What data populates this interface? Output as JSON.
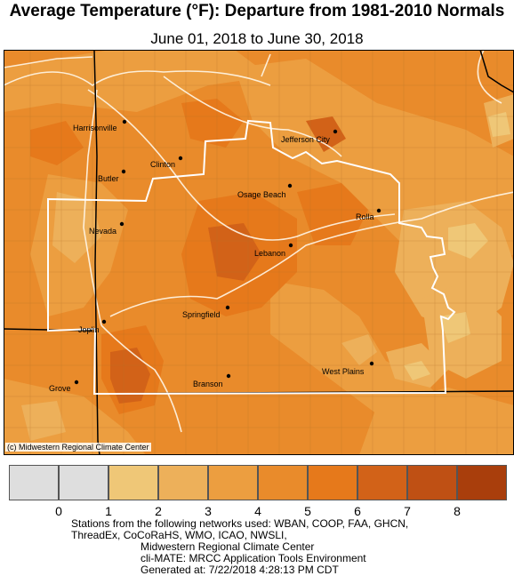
{
  "title": "Average Temperature (°F): Departure from 1981-2010 Normals",
  "date_range": "June 01, 2018 to June 30, 2018",
  "copyright": "(c) Midwestern Regional Climate Center",
  "cities": [
    {
      "name": "Harrisonville"
    },
    {
      "name": "Jefferson City"
    },
    {
      "name": "Clinton"
    },
    {
      "name": "Butler"
    },
    {
      "name": "Osage Beach"
    },
    {
      "name": "Rolla"
    },
    {
      "name": "Nevada"
    },
    {
      "name": "Lebanon"
    },
    {
      "name": "Springfield"
    },
    {
      "name": "Joplin"
    },
    {
      "name": "West Plains"
    },
    {
      "name": "Branson"
    },
    {
      "name": "Grove"
    }
  ],
  "legend": {
    "ticks": [
      "0",
      "1",
      "2",
      "3",
      "4",
      "5",
      "6",
      "7",
      "8"
    ],
    "bins": [
      {
        "range": "<0",
        "color": "#dedede"
      },
      {
        "range": "0-1",
        "color": "#dedede"
      },
      {
        "range": "1-2",
        "color": "#efc777"
      },
      {
        "range": "2-3",
        "color": "#edb05a"
      },
      {
        "range": "3-4",
        "color": "#ec9e40"
      },
      {
        "range": "4-5",
        "color": "#e98b2b"
      },
      {
        "range": "5-6",
        "color": "#e6791b"
      },
      {
        "range": "6-7",
        "color": "#d26218"
      },
      {
        "range": "7-8",
        "color": "#bf5014"
      },
      {
        "range": ">8",
        "color": "#a93e0c"
      }
    ]
  },
  "footer": {
    "line1": "Stations from the following networks used: WBAN, COOP, FAA, GHCN,",
    "line2": "ThreadEx, CoCoRaHS, WMO, ICAO, NWSLI,",
    "line3": "Midwestern Regional Climate Center",
    "line4": "cli-MATE: MRCC Application Tools Environment",
    "line5": "Generated at: 7/22/2018 4:28:13 PM CDT"
  }
}
